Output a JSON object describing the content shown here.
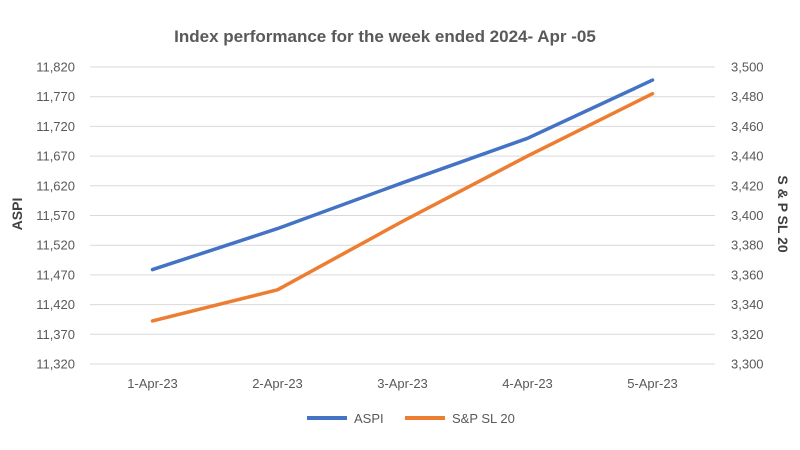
{
  "chart_data": {
    "type": "line",
    "title": "Index performance for the week ended 2024- Apr -05",
    "categories": [
      "1-Apr-23",
      "2-Apr-23",
      "3-Apr-23",
      "4-Apr-23",
      "5-Apr-23"
    ],
    "y_left": {
      "label": "ASPI",
      "range": [
        11320,
        11820
      ],
      "ticks": [
        "11,320",
        "11,370",
        "11,420",
        "11,470",
        "11,520",
        "11,570",
        "11,620",
        "11,670",
        "11,720",
        "11,770",
        "11,820"
      ]
    },
    "y_right": {
      "label": "S & P SL 20",
      "range": [
        3300,
        3500
      ],
      "ticks": [
        "3,300",
        "3,320",
        "3,340",
        "3,360",
        "3,380",
        "3,400",
        "3,420",
        "3,440",
        "3,460",
        "3,480",
        "3,500"
      ]
    },
    "series": [
      {
        "name": "ASPI",
        "axis": "left",
        "color": "#4472C4",
        "values": [
          11479,
          11548,
          11625,
          11700,
          11798
        ]
      },
      {
        "name": "S&P SL 20",
        "axis": "right",
        "color": "#ED7D31",
        "values": [
          3329,
          3350,
          3396,
          3440,
          3482
        ]
      }
    ],
    "grid": true,
    "legend_position": "bottom"
  }
}
